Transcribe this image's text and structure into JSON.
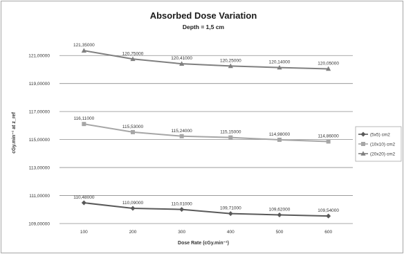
{
  "chart_data": {
    "type": "line",
    "title": "Absorbed Dose Variation",
    "subtitle": "Depth = 1,5 cm",
    "xlabel": "Dose Rate (cGy.min⁻¹)",
    "ylabel": "cGy.min⁻¹ at z_ref",
    "categories": [
      "100",
      "200",
      "300",
      "400",
      "500",
      "600"
    ],
    "ylim": [
      109,
      122
    ],
    "yticks": [
      109,
      111,
      113,
      115,
      117,
      119,
      121
    ],
    "ytick_labels": [
      "109,00000",
      "111,00000",
      "113,00000",
      "115,00000",
      "117,00000",
      "119,00000",
      "121,00000"
    ],
    "grid": true,
    "legend_position": "right",
    "series": [
      {
        "name": "(5x5) cm2",
        "marker": "diamond",
        "color": "#595959",
        "values": [
          110.48,
          110.09,
          110.01,
          109.71,
          109.62,
          109.54
        ],
        "labels": [
          "110,48000",
          "110,09000",
          "110,01000",
          "109,71000",
          "109,62000",
          "109,54000"
        ]
      },
      {
        "name": "(10x10) cm2",
        "marker": "square",
        "color": "#a6a6a6",
        "values": [
          116.11,
          115.53,
          115.24,
          115.15,
          114.98,
          114.86
        ],
        "labels": [
          "116,11000",
          "115,53000",
          "115,24000",
          "115,15000",
          "114,98000",
          "114,86000"
        ]
      },
      {
        "name": "(20x20) cm2",
        "marker": "triangle",
        "color": "#7f7f7f",
        "values": [
          121.35,
          120.75,
          120.41,
          120.25,
          120.14,
          120.05
        ],
        "labels": [
          "121,35000",
          "120,75000",
          "120,41000",
          "120,25000",
          "120,14000",
          "120,05000"
        ]
      }
    ]
  }
}
